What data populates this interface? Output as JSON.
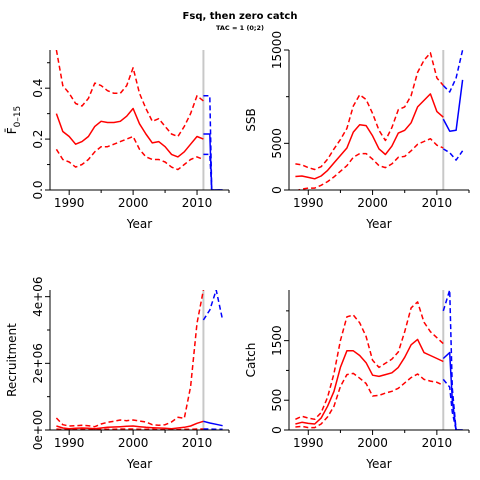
{
  "figure": {
    "title": "Fsq, then zero catch",
    "subtitle": "TAC = 1 (0;2)"
  },
  "colors": {
    "history": "#ff0000",
    "projection": "#0000ff",
    "vline": "#c8c8c8"
  },
  "vline_year": 2011,
  "chart_data": [
    {
      "id": "fbar",
      "type": "line",
      "ylabel": "F̄",
      "ylabel_subscript": "0–15",
      "xlabel": "Year",
      "xlim": [
        1987,
        2015
      ],
      "ylim": [
        0,
        0.55
      ],
      "xticks": [
        1990,
        2000,
        2010
      ],
      "xtick_labels": [
        "1990",
        "2000",
        "2010"
      ],
      "yticks": [
        0.0,
        0.2,
        0.4
      ],
      "ytick_labels": [
        "0.0",
        "0.2",
        "0.4"
      ],
      "yticks_minor": [
        0.1,
        0.3,
        0.5
      ],
      "series": [
        {
          "role": "historic-median",
          "style": "solid",
          "color": "#ff0000",
          "x": [
            1988,
            1989,
            1990,
            1991,
            1992,
            1993,
            1994,
            1995,
            1996,
            1997,
            1998,
            1999,
            2000,
            2001,
            2002,
            2003,
            2004,
            2005,
            2006,
            2007,
            2008,
            2009,
            2010,
            2011
          ],
          "y": [
            0.3,
            0.23,
            0.21,
            0.18,
            0.19,
            0.21,
            0.25,
            0.27,
            0.265,
            0.265,
            0.27,
            0.29,
            0.32,
            0.26,
            0.22,
            0.185,
            0.19,
            0.17,
            0.14,
            0.13,
            0.15,
            0.18,
            0.21,
            0.2
          ]
        },
        {
          "role": "historic-upper",
          "style": "dashed",
          "color": "#ff0000",
          "x": [
            1988,
            1989,
            1990,
            1991,
            1992,
            1993,
            1994,
            1995,
            1996,
            1997,
            1998,
            1999,
            2000,
            2001,
            2002,
            2003,
            2004,
            2005,
            2006,
            2007,
            2008,
            2009,
            2010,
            2011
          ],
          "y": [
            0.55,
            0.41,
            0.38,
            0.34,
            0.33,
            0.36,
            0.42,
            0.41,
            0.39,
            0.38,
            0.38,
            0.41,
            0.48,
            0.38,
            0.32,
            0.27,
            0.28,
            0.25,
            0.22,
            0.21,
            0.25,
            0.3,
            0.37,
            0.35
          ]
        },
        {
          "role": "historic-lower",
          "style": "dashed",
          "color": "#ff0000",
          "x": [
            1988,
            1989,
            1990,
            1991,
            1992,
            1993,
            1994,
            1995,
            1996,
            1997,
            1998,
            1999,
            2000,
            2001,
            2002,
            2003,
            2004,
            2005,
            2006,
            2007,
            2008,
            2009,
            2010,
            2011
          ],
          "y": [
            0.16,
            0.12,
            0.11,
            0.09,
            0.1,
            0.12,
            0.15,
            0.17,
            0.17,
            0.18,
            0.19,
            0.2,
            0.21,
            0.16,
            0.13,
            0.12,
            0.12,
            0.11,
            0.09,
            0.08,
            0.1,
            0.12,
            0.13,
            0.12
          ]
        },
        {
          "role": "projection-median",
          "style": "solid",
          "color": "#0000ff",
          "x": [
            2011,
            2012,
            2012.3,
            2013,
            2014
          ],
          "y": [
            0.22,
            0.22,
            0.0,
            0.0,
            0.0
          ]
        },
        {
          "role": "projection-upper",
          "style": "dashed",
          "color": "#0000ff",
          "x": [
            2011,
            2012,
            2012.3,
            2013,
            2014
          ],
          "y": [
            0.37,
            0.37,
            0.0,
            0.0,
            0.0
          ]
        },
        {
          "role": "projection-lower",
          "style": "dashed",
          "color": "#0000ff",
          "x": [
            2011,
            2012,
            2012.3,
            2013,
            2014
          ],
          "y": [
            0.14,
            0.14,
            0.0,
            0.0,
            0.0
          ]
        }
      ]
    },
    {
      "id": "ssb",
      "type": "line",
      "ylabel": "SSB",
      "xlabel": "Year",
      "xlim": [
        1987,
        2015
      ],
      "ylim": [
        0,
        15000
      ],
      "xticks": [
        1990,
        2000,
        2010
      ],
      "xtick_labels": [
        "1990",
        "2000",
        "2010"
      ],
      "yticks": [
        0,
        5000,
        15000
      ],
      "ytick_labels": [
        "0",
        "5000",
        "15000"
      ],
      "yticks_minor": [
        10000
      ],
      "series": [
        {
          "role": "historic-median",
          "style": "solid",
          "color": "#ff0000",
          "x": [
            1988,
            1989,
            1990,
            1991,
            1992,
            1993,
            1994,
            1995,
            1996,
            1997,
            1998,
            1999,
            2000,
            2001,
            2002,
            2003,
            2004,
            2005,
            2006,
            2007,
            2008,
            2009,
            2010,
            2011
          ],
          "y": [
            1450,
            1500,
            1350,
            1200,
            1500,
            2100,
            2900,
            3700,
            4500,
            6200,
            7000,
            6900,
            5800,
            4400,
            3800,
            4700,
            6100,
            6400,
            7200,
            8900,
            9600,
            10300,
            8400,
            7800
          ]
        },
        {
          "role": "historic-upper",
          "style": "dashed",
          "color": "#ff0000",
          "x": [
            1988,
            1989,
            1990,
            1991,
            1992,
            1993,
            1994,
            1995,
            1996,
            1997,
            1998,
            1999,
            2000,
            2001,
            2002,
            2003,
            2004,
            2005,
            2006,
            2007,
            2008,
            2009,
            2010,
            2011
          ],
          "y": [
            2800,
            2700,
            2400,
            2200,
            2500,
            3300,
            4400,
            5400,
            6600,
            9000,
            10200,
            9700,
            8200,
            6400,
            5300,
            6700,
            8600,
            8900,
            10100,
            12600,
            13900,
            14700,
            12000,
            11200
          ]
        },
        {
          "role": "historic-lower",
          "style": "dashed",
          "color": "#ff0000",
          "x": [
            1988,
            1989,
            1990,
            1991,
            1992,
            1993,
            1994,
            1995,
            1996,
            1997,
            1998,
            1999,
            2000,
            2001,
            2002,
            2003,
            2004,
            2005,
            2006,
            2007,
            2008,
            2009,
            2010,
            2011
          ],
          "y": [
            -100,
            100,
            200,
            200,
            500,
            900,
            1400,
            2000,
            2600,
            3500,
            3900,
            3900,
            3300,
            2600,
            2400,
            2800,
            3500,
            3600,
            4200,
            4900,
            5200,
            5500,
            4800,
            4500
          ]
        },
        {
          "role": "projection-median",
          "style": "solid",
          "color": "#0000ff",
          "x": [
            2011,
            2012,
            2013,
            2014
          ],
          "y": [
            7600,
            6300,
            6400,
            11800
          ]
        },
        {
          "role": "projection-upper",
          "style": "dashed",
          "color": "#0000ff",
          "x": [
            2011,
            2012,
            2013,
            2014
          ],
          "y": [
            11200,
            10500,
            12000,
            15000
          ]
        },
        {
          "role": "projection-lower",
          "style": "dashed",
          "color": "#0000ff",
          "x": [
            2011,
            2012,
            2013,
            2014
          ],
          "y": [
            4400,
            4000,
            3200,
            4200
          ]
        }
      ]
    },
    {
      "id": "recruitment",
      "type": "line",
      "ylabel": "Recruitment",
      "xlabel": "Year",
      "xlim": [
        1987,
        2015
      ],
      "ylim": [
        0,
        4200000
      ],
      "xticks": [
        1990,
        2000,
        2010
      ],
      "xtick_labels": [
        "1990",
        "2000",
        "2010"
      ],
      "yticks": [
        0,
        2000000,
        4000000
      ],
      "ytick_labels": [
        "0e+00",
        "2e+06",
        "4e+06"
      ],
      "yticks_minor": [
        1000000,
        3000000
      ],
      "series": [
        {
          "role": "historic-median",
          "style": "solid",
          "color": "#ff0000",
          "x": [
            1988,
            1989,
            1990,
            1991,
            1992,
            1993,
            1994,
            1995,
            1996,
            1997,
            1998,
            1999,
            2000,
            2001,
            2002,
            2003,
            2004,
            2005,
            2006,
            2007,
            2008,
            2009,
            2010,
            2011
          ],
          "y": [
            120000,
            60000,
            40000,
            50000,
            60000,
            50000,
            40000,
            60000,
            80000,
            90000,
            100000,
            110000,
            120000,
            100000,
            80000,
            70000,
            60000,
            50000,
            40000,
            60000,
            80000,
            120000,
            200000,
            260000
          ]
        },
        {
          "role": "historic-upper",
          "style": "dashed",
          "color": "#ff0000",
          "x": [
            1988,
            1989,
            1990,
            1991,
            1992,
            1993,
            1994,
            1995,
            1996,
            1997,
            1998,
            1999,
            2000,
            2001,
            2002,
            2003,
            2004,
            2005,
            2006,
            2007,
            2008,
            2009,
            2010,
            2011
          ],
          "y": [
            360000,
            160000,
            120000,
            130000,
            140000,
            130000,
            100000,
            180000,
            230000,
            260000,
            300000,
            280000,
            300000,
            270000,
            240000,
            160000,
            140000,
            160000,
            240000,
            380000,
            350000,
            1300000,
            3200000,
            4200000
          ]
        },
        {
          "role": "historic-lower",
          "style": "dashed",
          "color": "#ff0000",
          "x": [
            1988,
            1989,
            1990,
            1991,
            1992,
            1993,
            1994,
            1995,
            1996,
            1997,
            1998,
            1999,
            2000,
            2001,
            2002,
            2003,
            2004,
            2005,
            2006,
            2007,
            2008,
            2009,
            2010,
            2011
          ],
          "y": [
            30000,
            10000,
            10000,
            10000,
            20000,
            10000,
            10000,
            20000,
            20000,
            20000,
            30000,
            30000,
            30000,
            20000,
            20000,
            20000,
            10000,
            10000,
            10000,
            10000,
            20000,
            20000,
            30000,
            30000
          ]
        },
        {
          "role": "projection-median",
          "style": "solid",
          "color": "#0000ff",
          "x": [
            2011,
            2012,
            2013,
            2014
          ],
          "y": [
            260000,
            210000,
            170000,
            130000
          ]
        },
        {
          "role": "projection-upper",
          "style": "dashed",
          "color": "#0000ff",
          "x": [
            2011,
            2012,
            2013,
            2014
          ],
          "y": [
            3300000,
            3600000,
            4200000,
            3300000
          ]
        },
        {
          "role": "projection-lower",
          "style": "dashed",
          "color": "#0000ff",
          "x": [
            2011,
            2012,
            2013,
            2014
          ],
          "y": [
            30000,
            30000,
            20000,
            20000
          ]
        }
      ]
    },
    {
      "id": "catch",
      "type": "line",
      "ylabel": "Catch",
      "xlabel": "Year",
      "xlim": [
        1987,
        2015
      ],
      "ylim": [
        0,
        2350
      ],
      "xticks": [
        1990,
        2000,
        2010
      ],
      "xtick_labels": [
        "1990",
        "2000",
        "2010"
      ],
      "yticks": [
        0,
        500,
        1500
      ],
      "ytick_labels": [
        "0",
        "500",
        "1500"
      ],
      "yticks_minor": [
        1000,
        2000
      ],
      "series": [
        {
          "role": "historic-median",
          "style": "solid",
          "color": "#ff0000",
          "x": [
            1988,
            1989,
            1990,
            1991,
            1992,
            1993,
            1994,
            1995,
            1996,
            1997,
            1998,
            1999,
            2000,
            2001,
            2002,
            2003,
            2004,
            2005,
            2006,
            2007,
            2008,
            2009,
            2010,
            2011
          ],
          "y": [
            100,
            130,
            110,
            100,
            200,
            400,
            650,
            1050,
            1330,
            1330,
            1250,
            1130,
            920,
            900,
            930,
            960,
            1050,
            1220,
            1430,
            1520,
            1300,
            1250,
            1200,
            1150
          ]
        },
        {
          "role": "historic-upper",
          "style": "dashed",
          "color": "#ff0000",
          "x": [
            1988,
            1989,
            1990,
            1991,
            1992,
            1993,
            1994,
            1995,
            1996,
            1997,
            1998,
            1999,
            2000,
            2001,
            2002,
            2003,
            2004,
            2005,
            2006,
            2007,
            2008,
            2009,
            2010,
            2011
          ],
          "y": [
            180,
            230,
            200,
            180,
            290,
            550,
            950,
            1500,
            1900,
            1930,
            1800,
            1570,
            1170,
            1050,
            1120,
            1190,
            1310,
            1650,
            2050,
            2150,
            1810,
            1650,
            1550,
            1450
          ]
        },
        {
          "role": "historic-lower",
          "style": "dashed",
          "color": "#ff0000",
          "x": [
            1988,
            1989,
            1990,
            1991,
            1992,
            1993,
            1994,
            1995,
            1996,
            1997,
            1998,
            1999,
            2000,
            2001,
            2002,
            2003,
            2004,
            2005,
            2006,
            2007,
            2008,
            2009,
            2010,
            2011
          ],
          "y": [
            50,
            60,
            40,
            40,
            100,
            220,
            400,
            730,
            930,
            950,
            870,
            780,
            570,
            580,
            620,
            650,
            700,
            790,
            880,
            940,
            850,
            820,
            800,
            750
          ]
        },
        {
          "role": "projection-median",
          "style": "solid",
          "color": "#0000ff",
          "x": [
            2011,
            2012,
            2012.4,
            2013,
            2014
          ],
          "y": [
            1200,
            1300,
            500,
            0,
            0
          ]
        },
        {
          "role": "projection-upper",
          "style": "dashed",
          "color": "#0000ff",
          "x": [
            2011,
            2012,
            2012.4,
            2013,
            2014
          ],
          "y": [
            2000,
            2350,
            700,
            0,
            0
          ]
        },
        {
          "role": "projection-lower",
          "style": "dashed",
          "color": "#0000ff",
          "x": [
            2011,
            2012,
            2012.4,
            2013,
            2014
          ],
          "y": [
            850,
            720,
            300,
            0,
            0
          ]
        }
      ]
    }
  ]
}
